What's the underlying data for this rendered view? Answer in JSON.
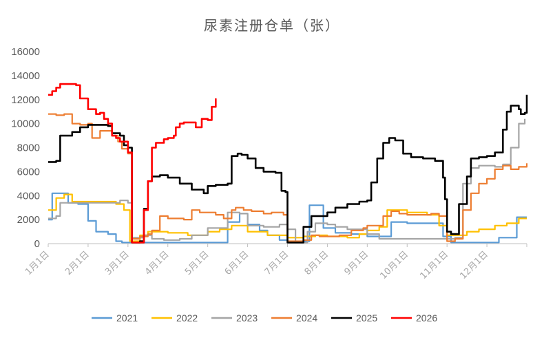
{
  "chart_data": {
    "type": "line",
    "title": "尿素注册仓单（张）",
    "xlabel": "",
    "ylabel": "",
    "ylim": [
      0,
      16000
    ],
    "y_ticks": [
      0,
      2000,
      4000,
      6000,
      8000,
      10000,
      12000,
      14000,
      16000
    ],
    "x_ticks": [
      "1月1日",
      "2月1日",
      "3月1日",
      "4月1日",
      "5月1日",
      "6月1日",
      "7月1日",
      "8月1日",
      "9月1日",
      "10月1日",
      "11月1日",
      "12月1日"
    ],
    "x_unit": "month (1 = 1月1日, 13 = end of December)",
    "grid": false,
    "legend_position": "bottom",
    "series": [
      {
        "name": "2021",
        "color": "#5b9bd5",
        "points": [
          [
            1.0,
            2000
          ],
          [
            1.1,
            4200
          ],
          [
            1.4,
            4200
          ],
          [
            1.5,
            3400
          ],
          [
            1.75,
            3300
          ],
          [
            2.0,
            1900
          ],
          [
            2.2,
            1000
          ],
          [
            2.5,
            800
          ],
          [
            2.7,
            200
          ],
          [
            2.85,
            100
          ],
          [
            3.2,
            100
          ],
          [
            3.6,
            100
          ],
          [
            4.0,
            100
          ],
          [
            4.5,
            100
          ],
          [
            5.0,
            100
          ],
          [
            5.5,
            1800
          ],
          [
            5.8,
            2500
          ],
          [
            6.0,
            1600
          ],
          [
            6.3,
            1100
          ],
          [
            6.5,
            700
          ],
          [
            6.8,
            300
          ],
          [
            7.0,
            100
          ],
          [
            7.4,
            200
          ],
          [
            7.55,
            3200
          ],
          [
            7.7,
            3200
          ],
          [
            7.9,
            1300
          ],
          [
            8.2,
            900
          ],
          [
            8.6,
            800
          ],
          [
            9.0,
            600
          ],
          [
            9.3,
            600
          ],
          [
            9.6,
            1800
          ],
          [
            10.0,
            1700
          ],
          [
            10.4,
            1700
          ],
          [
            10.7,
            1700
          ],
          [
            10.9,
            600
          ],
          [
            11.1,
            100
          ],
          [
            11.5,
            100
          ],
          [
            12.0,
            100
          ],
          [
            12.3,
            500
          ],
          [
            12.7,
            500
          ],
          [
            12.75,
            2200
          ],
          [
            13.0,
            2200
          ]
        ]
      },
      {
        "name": "2022",
        "color": "#ffc000",
        "points": [
          [
            1.0,
            2800
          ],
          [
            1.2,
            3800
          ],
          [
            1.4,
            4100
          ],
          [
            1.6,
            3500
          ],
          [
            2.0,
            3500
          ],
          [
            2.4,
            3500
          ],
          [
            2.7,
            3300
          ],
          [
            2.9,
            2800
          ],
          [
            3.05,
            200
          ],
          [
            3.1,
            200
          ],
          [
            3.3,
            700
          ],
          [
            3.5,
            1000
          ],
          [
            3.8,
            1000
          ],
          [
            4.0,
            900
          ],
          [
            4.5,
            700
          ],
          [
            5.0,
            1000
          ],
          [
            5.3,
            1200
          ],
          [
            5.6,
            1500
          ],
          [
            6.0,
            1000
          ],
          [
            6.5,
            700
          ],
          [
            7.0,
            500
          ],
          [
            7.4,
            600
          ],
          [
            7.7,
            700
          ],
          [
            8.0,
            600
          ],
          [
            8.5,
            500
          ],
          [
            8.8,
            800
          ],
          [
            9.0,
            1100
          ],
          [
            9.3,
            1400
          ],
          [
            9.5,
            2800
          ],
          [
            9.9,
            2800
          ],
          [
            10.0,
            2600
          ],
          [
            10.5,
            2400
          ],
          [
            10.8,
            1500
          ],
          [
            11.0,
            700
          ],
          [
            11.2,
            700
          ],
          [
            11.5,
            1000
          ],
          [
            11.8,
            1200
          ],
          [
            12.2,
            1500
          ],
          [
            12.5,
            1700
          ],
          [
            12.8,
            2100
          ],
          [
            13.0,
            2100
          ]
        ]
      },
      {
        "name": "2023",
        "color": "#a5a5a5",
        "points": [
          [
            1.0,
            2100
          ],
          [
            1.2,
            2300
          ],
          [
            1.3,
            3400
          ],
          [
            1.5,
            3400
          ],
          [
            2.0,
            3400
          ],
          [
            2.5,
            3400
          ],
          [
            2.75,
            3400
          ],
          [
            2.8,
            3600
          ],
          [
            3.0,
            3400
          ],
          [
            3.1,
            500
          ],
          [
            3.2,
            500
          ],
          [
            3.4,
            700
          ],
          [
            3.6,
            400
          ],
          [
            3.9,
            300
          ],
          [
            4.3,
            400
          ],
          [
            4.6,
            700
          ],
          [
            5.0,
            1300
          ],
          [
            5.4,
            1300
          ],
          [
            5.5,
            2600
          ],
          [
            5.8,
            2500
          ],
          [
            6.0,
            1500
          ],
          [
            6.4,
            1400
          ],
          [
            6.8,
            1600
          ],
          [
            7.0,
            1200
          ],
          [
            7.2,
            100
          ],
          [
            7.5,
            1000
          ],
          [
            7.7,
            1700
          ],
          [
            8.0,
            1600
          ],
          [
            8.2,
            1400
          ],
          [
            8.5,
            1200
          ],
          [
            8.8,
            1200
          ],
          [
            9.0,
            800
          ],
          [
            9.3,
            400
          ],
          [
            9.6,
            400
          ],
          [
            10.0,
            400
          ],
          [
            10.5,
            400
          ],
          [
            10.8,
            400
          ],
          [
            11.0,
            400
          ],
          [
            11.2,
            500
          ],
          [
            11.4,
            5000
          ],
          [
            11.6,
            6300
          ],
          [
            11.8,
            6500
          ],
          [
            12.0,
            6500
          ],
          [
            12.2,
            6400
          ],
          [
            12.4,
            6600
          ],
          [
            12.6,
            8000
          ],
          [
            12.8,
            10000
          ],
          [
            12.95,
            10400
          ]
        ]
      },
      {
        "name": "2024",
        "color": "#ed7d31",
        "points": [
          [
            1.0,
            10800
          ],
          [
            1.2,
            10700
          ],
          [
            1.4,
            10800
          ],
          [
            1.6,
            10000
          ],
          [
            1.8,
            9900
          ],
          [
            2.0,
            10000
          ],
          [
            2.1,
            8800
          ],
          [
            2.3,
            9400
          ],
          [
            2.6,
            9000
          ],
          [
            2.75,
            8500
          ],
          [
            2.85,
            7900
          ],
          [
            3.0,
            7500
          ],
          [
            3.1,
            400
          ],
          [
            3.2,
            400
          ],
          [
            3.3,
            600
          ],
          [
            3.5,
            800
          ],
          [
            3.6,
            1100
          ],
          [
            3.8,
            2300
          ],
          [
            4.0,
            2100
          ],
          [
            4.3,
            2100
          ],
          [
            4.4,
            2000
          ],
          [
            4.6,
            2800
          ],
          [
            4.8,
            2600
          ],
          [
            5.0,
            2600
          ],
          [
            5.2,
            2400
          ],
          [
            5.4,
            2100
          ],
          [
            5.6,
            2800
          ],
          [
            5.7,
            3000
          ],
          [
            5.9,
            2800
          ],
          [
            6.1,
            2700
          ],
          [
            6.4,
            2500
          ],
          [
            6.6,
            2600
          ],
          [
            6.9,
            2400
          ],
          [
            7.0,
            200
          ],
          [
            7.4,
            300
          ],
          [
            7.6,
            700
          ],
          [
            7.8,
            600
          ],
          [
            8.0,
            600
          ],
          [
            8.3,
            700
          ],
          [
            8.6,
            1100
          ],
          [
            8.9,
            1300
          ],
          [
            9.0,
            1500
          ],
          [
            9.2,
            1500
          ],
          [
            9.4,
            2300
          ],
          [
            9.6,
            2700
          ],
          [
            9.8,
            2500
          ],
          [
            10.0,
            2400
          ],
          [
            10.3,
            2400
          ],
          [
            10.6,
            2500
          ],
          [
            10.8,
            2300
          ],
          [
            11.0,
            200
          ],
          [
            11.2,
            400
          ],
          [
            11.4,
            2800
          ],
          [
            11.6,
            4200
          ],
          [
            11.8,
            5000
          ],
          [
            12.0,
            5400
          ],
          [
            12.2,
            6200
          ],
          [
            12.4,
            6500
          ],
          [
            12.6,
            6200
          ],
          [
            12.8,
            6400
          ],
          [
            13.0,
            6700
          ]
        ]
      },
      {
        "name": "2025",
        "color": "#000000",
        "points": [
          [
            1.0,
            6800
          ],
          [
            1.2,
            6900
          ],
          [
            1.3,
            9000
          ],
          [
            1.6,
            9300
          ],
          [
            1.8,
            9700
          ],
          [
            2.0,
            9900
          ],
          [
            2.3,
            9900
          ],
          [
            2.5,
            9800
          ],
          [
            2.6,
            9200
          ],
          [
            2.8,
            9000
          ],
          [
            2.9,
            8200
          ],
          [
            3.0,
            8000
          ],
          [
            3.1,
            100
          ],
          [
            3.2,
            100
          ],
          [
            3.3,
            200
          ],
          [
            3.4,
            2900
          ],
          [
            3.5,
            5200
          ],
          [
            3.6,
            5600
          ],
          [
            3.8,
            5700
          ],
          [
            4.0,
            5500
          ],
          [
            4.3,
            5000
          ],
          [
            4.6,
            4500
          ],
          [
            4.9,
            4200
          ],
          [
            5.0,
            4800
          ],
          [
            5.2,
            4900
          ],
          [
            5.5,
            5000
          ],
          [
            5.6,
            7300
          ],
          [
            5.75,
            7500
          ],
          [
            5.85,
            7400
          ],
          [
            6.0,
            7100
          ],
          [
            6.2,
            6300
          ],
          [
            6.4,
            6000
          ],
          [
            6.7,
            5900
          ],
          [
            6.85,
            4400
          ],
          [
            6.95,
            4300
          ],
          [
            7.0,
            100
          ],
          [
            7.2,
            100
          ],
          [
            7.4,
            1400
          ],
          [
            7.6,
            2300
          ],
          [
            7.8,
            2300
          ],
          [
            8.0,
            2600
          ],
          [
            8.2,
            3000
          ],
          [
            8.5,
            3300
          ],
          [
            8.8,
            3500
          ],
          [
            9.0,
            3600
          ],
          [
            9.1,
            5100
          ],
          [
            9.25,
            7100
          ],
          [
            9.4,
            8400
          ],
          [
            9.55,
            8800
          ],
          [
            9.7,
            8600
          ],
          [
            9.9,
            7500
          ],
          [
            10.1,
            7200
          ],
          [
            10.4,
            7100
          ],
          [
            10.7,
            6900
          ],
          [
            10.9,
            5500
          ],
          [
            10.95,
            3700
          ],
          [
            11.0,
            1000
          ],
          [
            11.1,
            800
          ],
          [
            11.3,
            3300
          ],
          [
            11.5,
            5600
          ],
          [
            11.6,
            7100
          ],
          [
            11.8,
            7200
          ],
          [
            12.0,
            7300
          ],
          [
            12.2,
            7600
          ],
          [
            12.4,
            9500
          ],
          [
            12.5,
            11000
          ],
          [
            12.6,
            11500
          ],
          [
            12.8,
            11200
          ],
          [
            12.85,
            10800
          ],
          [
            12.95,
            10900
          ],
          [
            13.0,
            12400
          ]
        ]
      },
      {
        "name": "2026",
        "color": "#ff0000",
        "points": [
          [
            1.0,
            12400
          ],
          [
            1.1,
            12700
          ],
          [
            1.2,
            13000
          ],
          [
            1.3,
            13300
          ],
          [
            1.5,
            13300
          ],
          [
            1.7,
            13200
          ],
          [
            1.8,
            12100
          ],
          [
            2.0,
            11200
          ],
          [
            2.2,
            10800
          ],
          [
            2.3,
            10900
          ],
          [
            2.4,
            10400
          ],
          [
            2.5,
            10000
          ],
          [
            2.6,
            9000
          ],
          [
            2.7,
            8800
          ],
          [
            2.8,
            8500
          ],
          [
            3.0,
            7600
          ],
          [
            3.1,
            100
          ],
          [
            3.15,
            100
          ],
          [
            3.4,
            2800
          ],
          [
            3.5,
            5200
          ],
          [
            3.6,
            8000
          ],
          [
            3.7,
            8400
          ],
          [
            3.9,
            8700
          ],
          [
            4.0,
            8800
          ],
          [
            4.15,
            9000
          ],
          [
            4.2,
            9700
          ],
          [
            4.3,
            10000
          ],
          [
            4.4,
            10100
          ],
          [
            4.6,
            10100
          ],
          [
            4.7,
            9700
          ],
          [
            4.85,
            10400
          ],
          [
            5.0,
            10300
          ],
          [
            5.1,
            11400
          ],
          [
            5.2,
            12100
          ]
        ]
      }
    ]
  }
}
